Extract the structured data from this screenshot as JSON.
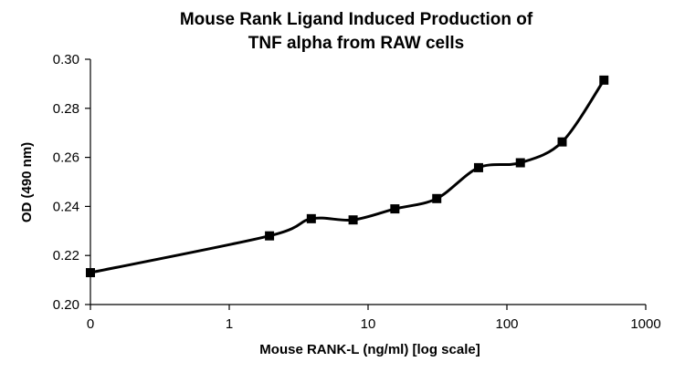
{
  "chart_data": {
    "type": "line",
    "title_lines": [
      "Mouse Rank Ligand Induced Production of",
      "TNF alpha from RAW cells"
    ],
    "xlabel": "Mouse RANK-L (ng/ml) [log scale]",
    "ylabel": "OD (490 nm)",
    "x_scale": "log",
    "x_tick_labels": [
      "0",
      "1",
      "10",
      "100",
      "1000"
    ],
    "y_tick_labels": [
      "0.20",
      "0.22",
      "0.24",
      "0.26",
      "0.28",
      "0.30"
    ],
    "ylim": [
      0.2,
      0.3
    ],
    "grid": false,
    "legend": "none",
    "line_color": "#000000",
    "marker": "square",
    "series": [
      {
        "x": [
          0,
          1.95,
          3.9,
          7.8,
          15.6,
          31.25,
          62.5,
          125,
          250,
          500
        ],
        "y": [
          0.213,
          0.228,
          0.235,
          0.2345,
          0.239,
          0.2432,
          0.2558,
          0.2578,
          0.2663,
          0.2915
        ]
      }
    ]
  }
}
